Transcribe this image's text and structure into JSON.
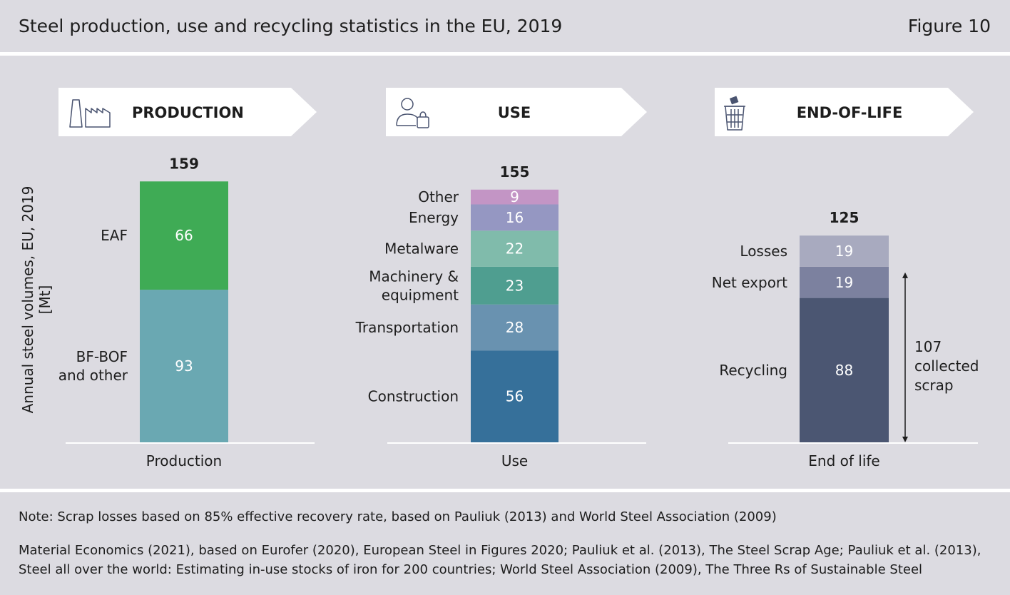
{
  "header": {
    "title": "Steel production, use and recycling statistics in the EU, 2019",
    "figure": "Figure 10"
  },
  "panels": {
    "production": {
      "label": "PRODUCTION",
      "icon": "factory-icon"
    },
    "use": {
      "label": "USE",
      "icon": "person-bag-icon"
    },
    "end_of_life": {
      "label": "END-OF-LIFE",
      "icon": "trash-bin-icon"
    }
  },
  "colors": {
    "EAF": "#3fab55",
    "BF-BOF and other": "#6aa8b2",
    "Other": "#c395c5",
    "Energy": "#9597c2",
    "Metalware": "#80bbab",
    "Machinery & equipment": "#4f9e90",
    "Transportation": "#6992b0",
    "Construction": "#36709a",
    "Losses": "#a8aabf",
    "Net export": "#7c819f",
    "Recycling": "#4b5672"
  },
  "chart_data": {
    "type": "bar",
    "stacked": true,
    "ylabel": "Annual steel volumes, EU, 2019 [Mt]",
    "categories": [
      "Production",
      "Use",
      "End of life"
    ],
    "totals": [
      159,
      155,
      125
    ],
    "stacks": [
      {
        "category": "Production",
        "segments": [
          {
            "name": "BF-BOF and other",
            "value": 93
          },
          {
            "name": "EAF",
            "value": 66
          }
        ]
      },
      {
        "category": "Use",
        "segments": [
          {
            "name": "Construction",
            "value": 56
          },
          {
            "name": "Transportation",
            "value": 28
          },
          {
            "name": "Machinery & equipment",
            "value": 23
          },
          {
            "name": "Metalware",
            "value": 22
          },
          {
            "name": "Energy",
            "value": 16
          },
          {
            "name": "Other",
            "value": 9
          }
        ]
      },
      {
        "category": "End of life",
        "segments": [
          {
            "name": "Recycling",
            "value": 88
          },
          {
            "name": "Net export",
            "value": 19
          },
          {
            "name": "Losses",
            "value": 19
          }
        ]
      }
    ],
    "annotation": {
      "text": "107 collected scrap",
      "value": 107
    },
    "grid": false,
    "legend": "inline labels left of bars"
  },
  "footer": {
    "note": "Note: Scrap losses based on 85% effective recovery rate, based on Pauliuk (2013) and World Steel Association (2009)",
    "source": "Material Economics (2021), based on Eurofer (2020), European Steel in Figures 2020; Pauliuk et al. (2013), The Steel Scrap Age; Pauliuk et al. (2013), Steel all over the world: Estimating in-use stocks of iron for 200 countries; World Steel Association (2009), The Three Rs of Sustainable Steel"
  }
}
